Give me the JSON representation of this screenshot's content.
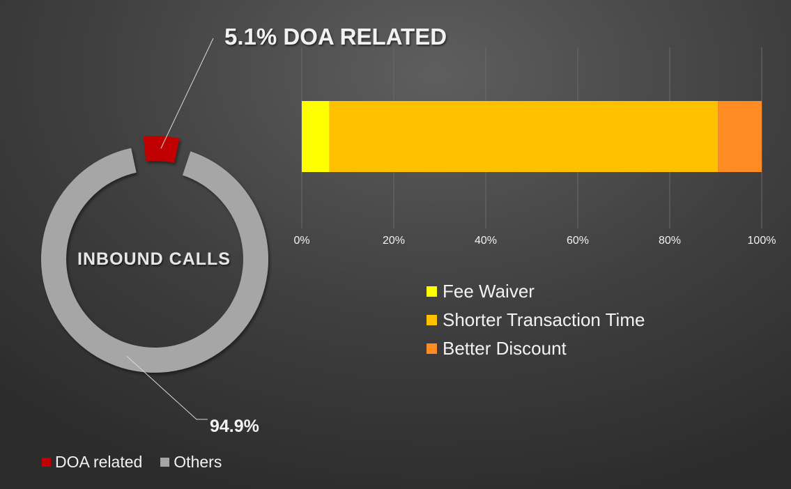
{
  "chart_data": [
    {
      "type": "pie",
      "variant": "donut",
      "center_label": "INBOUND CALLS",
      "slices": [
        {
          "name": "DOA related",
          "value": 5.1,
          "label": "5.1% DOA RELATED",
          "color": "#c00000"
        },
        {
          "name": "Others",
          "value": 94.9,
          "label": "94.9%",
          "color": "#a6a6a6"
        }
      ],
      "legend_position": "bottom-left"
    },
    {
      "type": "bar",
      "orientation": "horizontal",
      "stacked": "percent",
      "categories": [
        ""
      ],
      "series": [
        {
          "name": "Fee Waiver",
          "values": [
            6
          ],
          "color": "#ffff00"
        },
        {
          "name": "Shorter Transaction Time",
          "values": [
            84.5
          ],
          "color": "#ffc000"
        },
        {
          "name": "Better Discount",
          "values": [
            9.5
          ],
          "color": "#ff8c22"
        }
      ],
      "xlim": [
        0,
        100
      ],
      "x_ticks": [
        "0%",
        "20%",
        "40%",
        "60%",
        "80%",
        "100%"
      ],
      "grid": true,
      "legend_position": "bottom"
    }
  ]
}
